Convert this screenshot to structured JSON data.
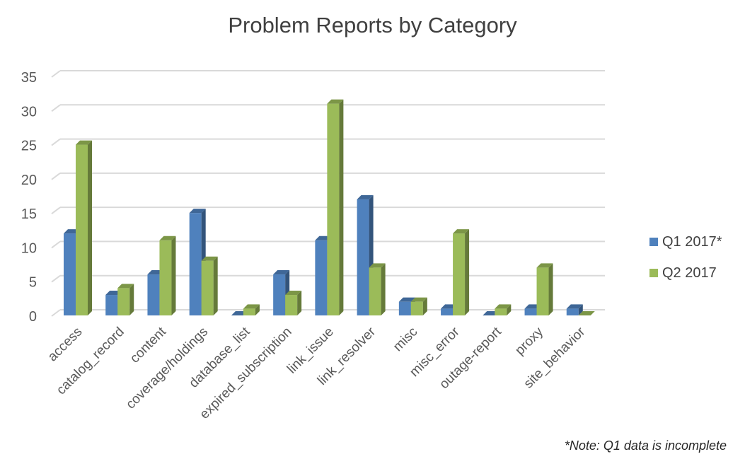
{
  "chart_data": {
    "type": "bar",
    "title": "Problem Reports by Category",
    "xlabel": "",
    "ylabel": "",
    "ylim": [
      0,
      35
    ],
    "yticks": [
      0,
      5,
      10,
      15,
      20,
      25,
      30,
      35
    ],
    "grid": true,
    "legend_position": "right",
    "categories": [
      "access",
      "catalog_record",
      "content",
      "coverage/holdings",
      "database_list",
      "expired_subscription",
      "link_issue",
      "link_resolver",
      "misc",
      "misc_error",
      "outage-report",
      "proxy",
      "site_behavior"
    ],
    "series": [
      {
        "name": "Q1 2017*",
        "color": "#4f81bd",
        "values": [
          12,
          3,
          6,
          15,
          0,
          6,
          11,
          17,
          2,
          1,
          0,
          1,
          1
        ]
      },
      {
        "name": "Q2 2017",
        "color": "#9bbb59",
        "values": [
          25,
          4,
          11,
          8,
          1,
          3,
          31,
          7,
          2,
          12,
          1,
          7,
          0
        ]
      }
    ],
    "annotation": "*Note: Q1 data is incomplete"
  }
}
